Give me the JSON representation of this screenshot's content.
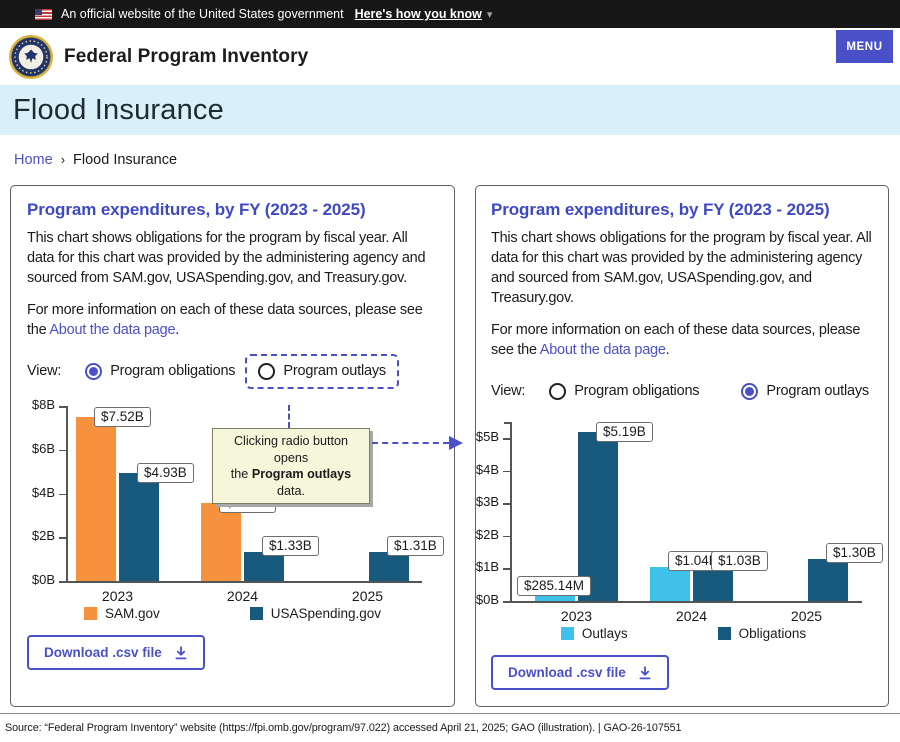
{
  "gov_banner": {
    "text": "An official website of the United States government",
    "link_label": "Here's how you know",
    "chevron_glyph": "▾"
  },
  "header": {
    "site_title": "Federal Program Inventory",
    "menu_label": "MENU"
  },
  "hero": {
    "page_title": "Flood Insurance"
  },
  "breadcrumb": {
    "home_label": "Home",
    "separator": "›",
    "current": "Flood Insurance"
  },
  "panels": [
    {
      "title": "Program expenditures, by FY (2023 - 2025)",
      "description": "This chart shows obligations for the program by fiscal year. All data for this chart was provided by the administering agency and sourced from SAM.gov, USASpending.gov, and Treasury.gov.",
      "more_info": {
        "pre": "For more information on each of these data sources, please see the ",
        "link_label": "About the data page",
        "post": "."
      },
      "view_label": "View:",
      "radios": [
        {
          "label": "Program obligations",
          "selected": true
        },
        {
          "label": "Program outlays",
          "selected": false,
          "highlighted": true
        }
      ],
      "download_label": "Download .csv file"
    },
    {
      "title": "Program expenditures, by FY (2023 - 2025)",
      "description": "This chart shows obligations for the program by fiscal year. All data for this chart was provided by the administering agency and sourced from SAM.gov, USASpending.gov, and Treasury.gov.",
      "more_info": {
        "pre": "For more information on each of these data sources, please see the ",
        "link_label": "About the data page",
        "post": "."
      },
      "view_label": "View:",
      "radios": [
        {
          "label": "Program obligations",
          "selected": false
        },
        {
          "label": "Program outlays",
          "selected": true
        }
      ],
      "download_label": "Download .csv file"
    }
  ],
  "chart_data": [
    {
      "type": "bar",
      "title": "Program expenditures, by FY (2023 - 2025) — Program obligations",
      "categories": [
        "2023",
        "2024",
        "2025"
      ],
      "series": [
        {
          "name": "SAM.gov",
          "color": "#F6913E",
          "values": [
            7.52,
            3.57,
            null
          ],
          "labels": [
            "$7.52B",
            "$3.57B",
            null
          ]
        },
        {
          "name": "USASpending.gov",
          "color": "#175A7E",
          "values": [
            4.93,
            1.33,
            1.31
          ],
          "labels": [
            "$4.93B",
            "$1.33B",
            "$1.31B"
          ]
        }
      ],
      "xlabel": "",
      "ylabel": "",
      "ylim": [
        0,
        8
      ],
      "y_ticks": [
        {
          "label": "$0B",
          "value": 0
        },
        {
          "label": "$2B",
          "value": 2
        },
        {
          "label": "$4B",
          "value": 4
        },
        {
          "label": "$6B",
          "value": 6
        },
        {
          "label": "$8B",
          "value": 8
        }
      ],
      "grid": false,
      "legend_position": "bottom"
    },
    {
      "type": "bar",
      "title": "Program expenditures, by FY (2023 - 2025) — Program outlays",
      "categories": [
        "2023",
        "2024",
        "2025"
      ],
      "series": [
        {
          "name": "Outlays",
          "color": "#3FC2EA",
          "values": [
            0.28514,
            1.04,
            null
          ],
          "labels": [
            "$285.14M",
            "$1.04B",
            null
          ]
        },
        {
          "name": "Obligations",
          "color": "#175A7E",
          "values": [
            5.19,
            1.03,
            1.3
          ],
          "labels": [
            "$5.19B",
            "$1.03B",
            "$1.30B"
          ]
        }
      ],
      "xlabel": "",
      "ylabel": "",
      "ylim": [
        0,
        5.5
      ],
      "y_ticks": [
        {
          "label": "$0B",
          "value": 0
        },
        {
          "label": "$1B",
          "value": 1
        },
        {
          "label": "$2B",
          "value": 2
        },
        {
          "label": "$3B",
          "value": 3
        },
        {
          "label": "$4B",
          "value": 4
        },
        {
          "label": "$5B",
          "value": 5
        }
      ],
      "grid": false,
      "legend_position": "bottom"
    }
  ],
  "annotation": {
    "line1": "Clicking radio button opens",
    "line2_pre": "the ",
    "line2_bold": "Program outlays",
    "line2_post": " data."
  },
  "source_note": "Source: “Federal Program Inventory” website (https://fpi.omb.gov/program/97.022) accessed April 21, 2025; GAO (illustration).  |  GAO-26-107551",
  "colors": {
    "accent_indigo": "#4a50c8",
    "title_indigo": "#3e49c4",
    "orange": "#F6913E",
    "dark_blue": "#175A7E",
    "light_blue": "#3FC2EA",
    "hero_bg": "#daf0f9",
    "banner_bg": "#171717",
    "callout_bg": "#f6f6da"
  }
}
